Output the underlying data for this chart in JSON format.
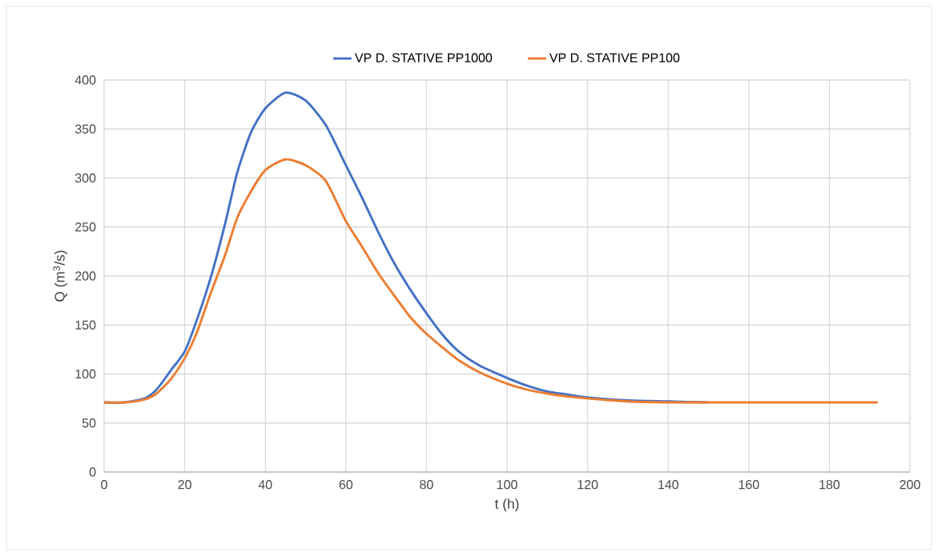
{
  "chart_data": {
    "type": "line",
    "xlabel": "t (h)",
    "ylabel": "Q (m$^{3}$/s)",
    "x": [
      0,
      5,
      10,
      13,
      16.6,
      20,
      23,
      26.5,
      30,
      33,
      36.4,
      40,
      45,
      50,
      55,
      60,
      64,
      68,
      72,
      76,
      80,
      84,
      88,
      93,
      100,
      105,
      110,
      115,
      120,
      130,
      140,
      150,
      160,
      192
    ],
    "series": [
      {
        "name": "VP D. STATIVE PP1000",
        "color": "#4472c4",
        "values": [
          71,
          71,
          75,
          84,
          104,
          123,
          155,
          199,
          253,
          305,
          346,
          371,
          387,
          379,
          354,
          313,
          280,
          245,
          213,
          186,
          162,
          140,
          123,
          109,
          96,
          88,
          82,
          79,
          76,
          73,
          72,
          71,
          null,
          null
        ]
      },
      {
        "name": "VP D. STATIVE PP100",
        "color": "#ed7d31",
        "values": [
          71,
          71,
          74,
          80,
          95,
          116,
          142,
          183,
          221,
          259,
          286,
          308,
          319,
          313,
          297,
          256,
          230,
          203,
          180,
          158,
          141,
          127,
          114,
          102,
          90,
          84,
          80,
          77,
          75,
          72,
          71,
          71,
          71,
          71
        ]
      }
    ],
    "xlim": [
      0,
      200
    ],
    "ylim": [
      0,
      400
    ],
    "xticks": [
      0,
      20,
      40,
      60,
      80,
      100,
      120,
      140,
      160,
      180,
      200
    ],
    "yticks": [
      0,
      50,
      100,
      150,
      200,
      250,
      300,
      350,
      400
    ],
    "grid": true,
    "legend": "top"
  }
}
